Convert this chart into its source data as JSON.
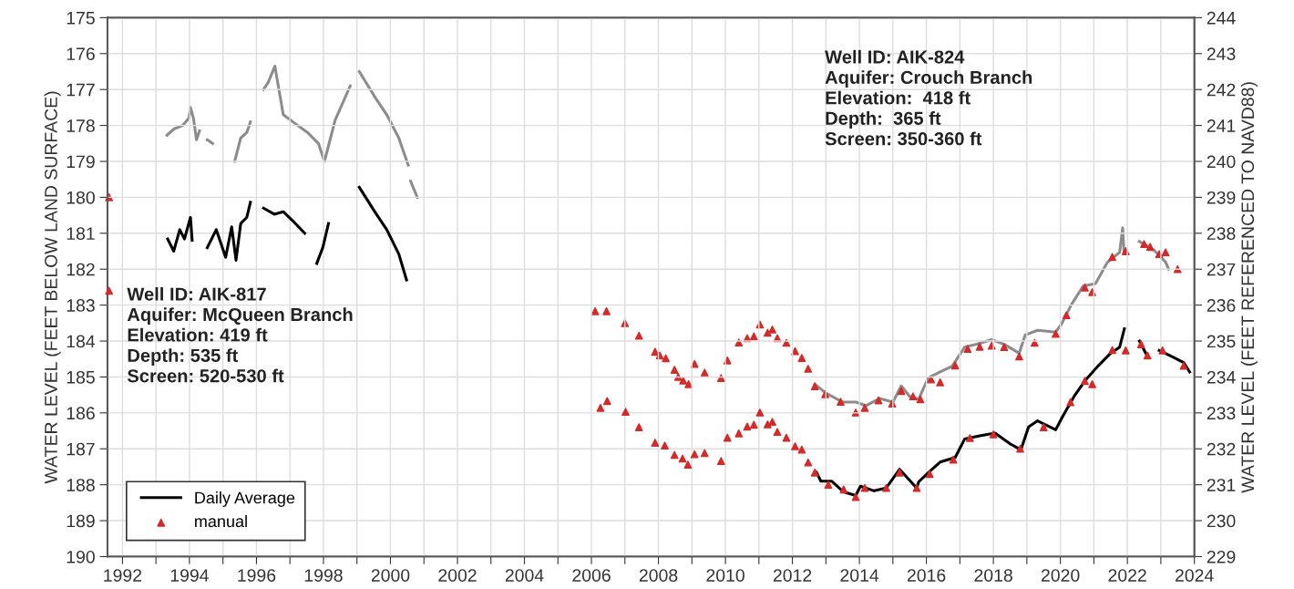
{
  "chart_data": {
    "type": "line",
    "ylabel": "WATER LEVEL (FEET BELOW LAND SURFACE)",
    "y2label": "WATER LEVEL (FEET REFERENCED TO NAVD88)",
    "annotations": [
      "Well ID: AIK-817\nAquifer: McQueen Branch\nElevation: 419 ft\nDepth: 535 ft\nScreen: 520-530 ft",
      "Well ID: AIK-824\nAquifer: Crouch Branch\nElevation:  418 ft\nDepth:  365 ft\nScreen: 350-360 ft"
    ],
    "xlim": [
      1991.55,
      2024.0
    ],
    "xticks": [
      1992,
      {
        "value": 1993,
        "label": null
      },
      1994,
      {
        "value": 1995,
        "label": null
      },
      1996,
      {
        "value": 1997,
        "label": null
      },
      1998,
      {
        "value": 1999,
        "label": null
      },
      2000,
      {
        "value": 2001,
        "label": null
      },
      2002,
      {
        "value": 2003,
        "label": null
      },
      2004,
      {
        "value": 2005,
        "label": null
      },
      2006,
      {
        "value": 2007,
        "label": null
      },
      2008,
      {
        "value": 2009,
        "label": null
      },
      2010,
      {
        "value": 2011,
        "label": null
      },
      2012,
      {
        "value": 2013,
        "label": null
      },
      2014,
      {
        "value": 2015,
        "label": null
      },
      2016,
      {
        "value": 2017,
        "label": null
      },
      2018,
      {
        "value": 2019,
        "label": null
      },
      2020,
      {
        "value": 2021,
        "label": null
      },
      2022,
      {
        "value": 2023,
        "label": null
      },
      2024
    ],
    "ylim": [
      190,
      175
    ],
    "yticks": [
      175,
      176,
      177,
      178,
      179,
      180,
      181,
      182,
      183,
      184,
      185,
      186,
      187,
      188,
      189,
      190
    ],
    "y2lim": [
      229,
      244
    ],
    "y2ticks": [
      229,
      230,
      231,
      232,
      233,
      234,
      235,
      236,
      237,
      238,
      239,
      240,
      241,
      242,
      243,
      244
    ],
    "grid": true,
    "legend": "bottom left",
    "series": [
      {
        "color": "#8c8c8c",
        "axis": "y2",
        "marker": "none",
        "line_style": "solid",
        "x": [
          1993.33,
          1993.53,
          1993.8,
          1993.98,
          1994.03,
          1994.12,
          1994.21,
          1994.3,
          1994.4,
          1994.53,
          1994.69,
          1995.0,
          1995.35,
          1995.53,
          1995.71,
          1995.82,
          1996.0,
          1996.21,
          1996.35,
          1996.55,
          1996.8,
          1997.16,
          1997.53,
          1997.85,
          1998.03,
          1998.35,
          1998.8,
          1998.95,
          1999.07,
          1999.53,
          1999.89,
          2000.25,
          2000.53,
          2000.56,
          2000.6,
          2000.8,
          2006.0,
          2012.67,
          2013.0,
          2013.5,
          2013.9,
          2014.2,
          2014.6,
          2015.0,
          2015.25,
          2015.5,
          2015.77,
          2016.05,
          2016.41,
          2016.77,
          2017.14,
          2017.5,
          2017.95,
          2018.32,
          2018.77,
          2018.95,
          2019.32,
          2019.86,
          2020.05,
          2020.32,
          2020.68,
          2021.05,
          2021.41,
          2021.77,
          2021.86,
          2021.9,
          2022.1,
          2022.36,
          2022.77,
          2023.14,
          2023.23
        ],
        "values": [
          240.73,
          240.9,
          241.0,
          241.2,
          241.5,
          241.2,
          240.6,
          240.85,
          null,
          240.6,
          240.5,
          null,
          240.0,
          240.65,
          240.8,
          241.1,
          null,
          242.0,
          242.2,
          242.65,
          241.3,
          241.05,
          240.8,
          240.5,
          240.0,
          241.15,
          242.1,
          null,
          242.5,
          241.8,
          241.3,
          240.65,
          239.9,
          null,
          239.45,
          239.0,
          null,
          233.8,
          233.55,
          233.3,
          233.3,
          233.2,
          233.4,
          233.3,
          233.75,
          233.46,
          233.38,
          233.97,
          234.14,
          234.3,
          234.83,
          234.91,
          235.04,
          234.91,
          234.66,
          235.17,
          235.3,
          235.25,
          235.5,
          236.0,
          236.53,
          236.6,
          237.2,
          237.47,
          238.15,
          237.47,
          null,
          237.77,
          237.55,
          237.2,
          237.0
        ]
      },
      {
        "name": "Daily Average",
        "color": "#000000",
        "marker": "none",
        "line_style": "solid",
        "x": [
          1993.35,
          1993.53,
          1993.71,
          1993.85,
          1994.03,
          1994.08,
          1994.3,
          1994.53,
          1994.8,
          1995.08,
          1995.26,
          1995.39,
          1995.53,
          1995.71,
          1995.82,
          1996.0,
          1996.21,
          1996.53,
          1996.8,
          1997.08,
          1997.44,
          1997.6,
          1997.8,
          1997.98,
          1998.15,
          1998.6,
          1999.07,
          1999.53,
          1999.89,
          2000.25,
          2000.48,
          2006.0,
          2012.72,
          2012.85,
          2013.17,
          2013.53,
          2013.89,
          2014.03,
          2014.44,
          2014.8,
          2015.2,
          2015.71,
          2015.77,
          2016.05,
          2016.41,
          2016.86,
          2017.14,
          2017.59,
          2018.05,
          2018.5,
          2018.82,
          2019.05,
          2019.32,
          2019.86,
          2020.05,
          2020.41,
          2020.73,
          2021.14,
          2021.5,
          2021.77,
          2021.91,
          2022.1,
          2022.36,
          2022.55,
          2022.75,
          2022.95,
          2023.32,
          2023.68,
          2023.86
        ],
        "values": [
          181.16,
          181.5,
          180.9,
          181.16,
          180.56,
          181.2,
          null,
          181.4,
          180.9,
          181.67,
          180.82,
          181.75,
          180.73,
          180.56,
          180.14,
          null,
          180.3,
          180.47,
          180.4,
          180.65,
          181.0,
          null,
          181.84,
          181.4,
          180.73,
          null,
          179.72,
          180.4,
          180.9,
          181.58,
          182.3,
          null,
          187.66,
          187.9,
          187.9,
          188.2,
          188.3,
          188.04,
          188.17,
          188.09,
          187.57,
          188.09,
          187.92,
          187.67,
          187.37,
          187.24,
          186.73,
          186.64,
          186.56,
          186.86,
          187.03,
          186.39,
          186.22,
          186.47,
          186.13,
          185.54,
          185.11,
          184.68,
          184.34,
          184.17,
          183.66,
          null,
          184.0,
          184.34,
          null,
          184.26,
          184.43,
          184.6,
          184.86
        ]
      },
      {
        "type": "scatter",
        "color": "#d42a2a",
        "axis": "y2",
        "marker": "triangle",
        "x": [
          1991.6,
          2006.11,
          2006.45,
          2007.0,
          2007.42,
          2007.9,
          2008.04,
          2008.22,
          2008.48,
          2008.59,
          2008.74,
          2008.9,
          2009.08,
          2009.38,
          2009.87,
          2010.06,
          2010.4,
          2010.65,
          2010.85,
          2011.03,
          2011.26,
          2011.4,
          2011.55,
          2011.82,
          2012.08,
          2012.28,
          2012.47,
          2012.67,
          2012.98,
          2013.44,
          2013.89,
          2014.16,
          2014.57,
          2014.98,
          2015.25,
          2015.6,
          2015.82,
          2016.14,
          2016.41,
          2016.86,
          2017.23,
          2017.59,
          2017.95,
          2018.32,
          2018.77,
          2019.23,
          2019.86,
          2020.18,
          2020.73,
          2020.95,
          2021.55,
          2021.95,
          2022.5,
          2022.68,
          2022.95,
          2023.14,
          2023.5
        ],
        "values": [
          239.0,
          235.83,
          235.83,
          235.5,
          235.15,
          234.7,
          234.6,
          234.52,
          234.2,
          234.0,
          233.9,
          233.8,
          234.36,
          234.12,
          233.97,
          234.46,
          234.96,
          235.08,
          235.13,
          235.46,
          235.23,
          235.32,
          235.08,
          234.95,
          234.72,
          234.53,
          234.23,
          233.74,
          233.52,
          233.31,
          233.01,
          233.14,
          233.35,
          233.26,
          233.61,
          233.46,
          233.38,
          233.93,
          233.85,
          234.32,
          234.78,
          234.84,
          234.87,
          234.83,
          234.57,
          234.95,
          235.2,
          235.72,
          236.49,
          236.36,
          237.34,
          237.5,
          237.7,
          237.62,
          237.42,
          237.47,
          237.0
        ]
      },
      {
        "type": "scatter",
        "name": "manual",
        "color": "#d42a2a",
        "marker": "triangle",
        "x": [
          1991.6,
          2006.27,
          2006.47,
          2007.02,
          2007.42,
          2007.9,
          2008.19,
          2008.48,
          2008.72,
          2008.88,
          2009.08,
          2009.38,
          2009.87,
          2010.06,
          2010.4,
          2010.65,
          2010.85,
          2011.03,
          2011.26,
          2011.4,
          2011.55,
          2011.82,
          2012.08,
          2012.28,
          2012.47,
          2012.67,
          2013.07,
          2013.53,
          2013.89,
          2014.16,
          2014.8,
          2015.2,
          2015.71,
          2016.1,
          2016.8,
          2017.3,
          2018.0,
          2018.8,
          2019.5,
          2020.3,
          2020.73,
          2020.95,
          2021.55,
          2021.95,
          2022.41,
          2022.6,
          2023.05,
          2023.68
        ],
        "values": [
          182.6,
          185.86,
          185.67,
          185.97,
          186.4,
          186.83,
          186.91,
          187.17,
          187.27,
          187.44,
          187.15,
          187.12,
          187.34,
          186.69,
          186.57,
          186.38,
          186.33,
          185.99,
          186.32,
          186.25,
          186.53,
          186.69,
          186.93,
          187.02,
          187.38,
          187.66,
          188.0,
          188.13,
          188.34,
          188.09,
          188.09,
          187.66,
          188.09,
          187.7,
          187.3,
          186.7,
          186.6,
          187.0,
          186.4,
          185.7,
          185.11,
          185.2,
          184.25,
          184.26,
          184.09,
          184.4,
          184.26,
          184.69
        ]
      }
    ]
  }
}
